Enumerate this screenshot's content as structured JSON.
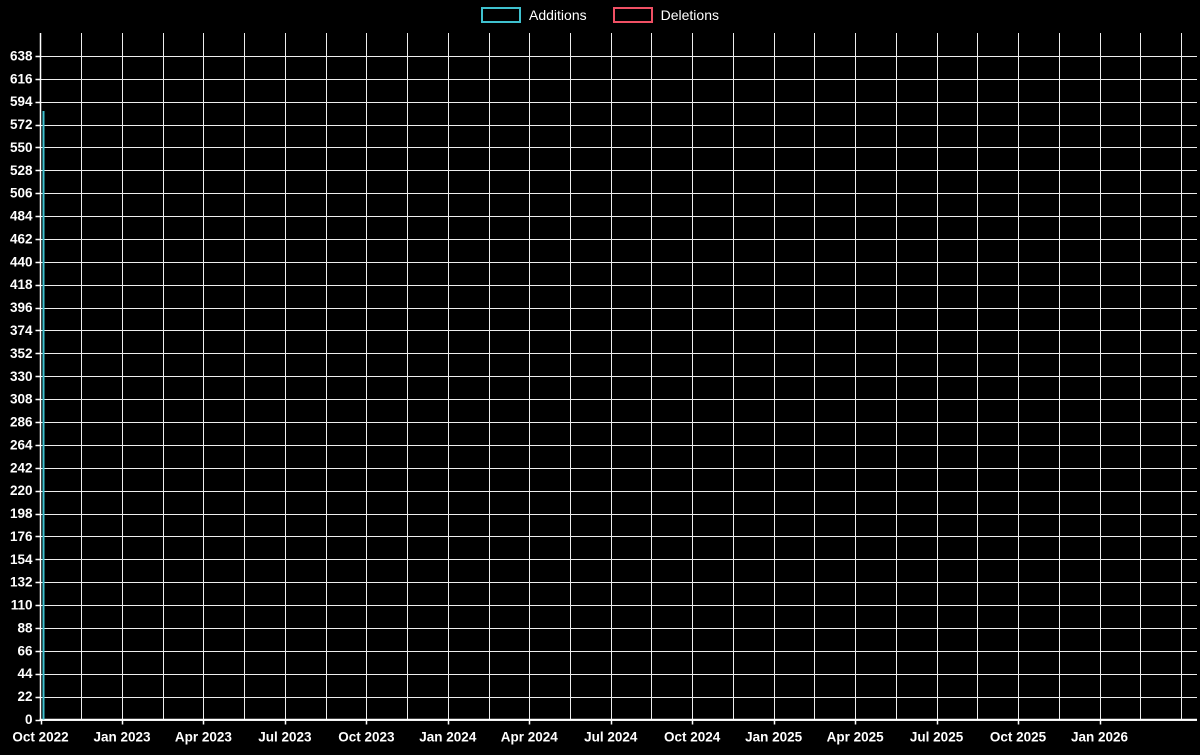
{
  "legend": {
    "items": [
      {
        "label": "Additions",
        "color": "#3fc1cf"
      },
      {
        "label": "Deletions",
        "color": "#f05064"
      }
    ]
  },
  "chart_data": {
    "type": "line",
    "title": "",
    "x_labels": [
      "Oct 2022",
      "Jan 2023",
      "Apr 2023",
      "Jul 2023",
      "Oct 2023",
      "Jan 2024",
      "Apr 2024",
      "Jul 2024",
      "Oct 2024",
      "Jan 2025",
      "Apr 2025",
      "Jul 2025",
      "Oct 2025",
      "Jan 2026"
    ],
    "y_ticks": [
      0,
      22,
      44,
      66,
      88,
      110,
      132,
      154,
      176,
      198,
      220,
      242,
      264,
      286,
      308,
      330,
      352,
      374,
      396,
      418,
      440,
      462,
      484,
      506,
      528,
      550,
      572,
      594,
      616,
      638
    ],
    "ylim": [
      0,
      660
    ],
    "grid": true,
    "legend_position": "top-center",
    "background_color": "#000000",
    "axis_color": "#ffffff",
    "grid_color": "#ededed",
    "series": [
      {
        "name": "Additions",
        "color": "#3fc1cf",
        "points": [
          {
            "x": "Oct 2022",
            "value": 585
          }
        ]
      },
      {
        "name": "Deletions",
        "color": "#f05064",
        "points": [
          {
            "x": "Oct 2022",
            "value": 0
          }
        ]
      }
    ]
  }
}
